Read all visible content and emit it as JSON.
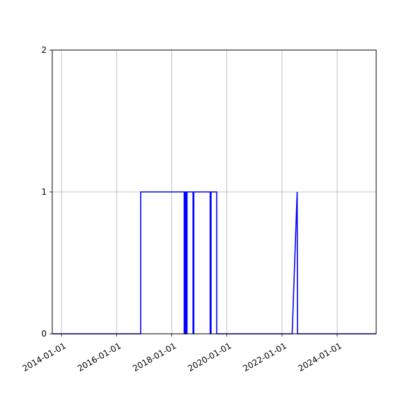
{
  "chart_data": {
    "type": "line",
    "title": "",
    "xlabel": "",
    "ylabel": "",
    "x_type": "date",
    "xlim": [
      "2013-09-01",
      "2025-06-01"
    ],
    "ylim": [
      0,
      2
    ],
    "x_ticks": [
      "2014-01-01",
      "2016-01-01",
      "2018-01-01",
      "2020-01-01",
      "2022-01-01",
      "2024-01-01"
    ],
    "y_ticks": [
      0,
      1,
      2
    ],
    "y_tick_labels": [
      "0",
      "1",
      "2"
    ],
    "grid": true,
    "legend": "none",
    "series": [
      {
        "color": "#0000ff",
        "points": [
          [
            "2013-09-01",
            0
          ],
          [
            "2016-11-15",
            0
          ],
          [
            "2016-11-15",
            1
          ],
          [
            "2018-06-15",
            1
          ],
          [
            "2018-06-15",
            0
          ],
          [
            "2018-06-25",
            0
          ],
          [
            "2018-06-25",
            1
          ],
          [
            "2018-07-01",
            1
          ],
          [
            "2018-07-01",
            0
          ],
          [
            "2018-07-08",
            0
          ],
          [
            "2018-07-08",
            1
          ],
          [
            "2018-07-15",
            1
          ],
          [
            "2018-07-15",
            0
          ],
          [
            "2018-07-22",
            0
          ],
          [
            "2018-07-22",
            1
          ],
          [
            "2018-10-10",
            1
          ],
          [
            "2018-10-10",
            0
          ],
          [
            "2018-10-20",
            0
          ],
          [
            "2018-10-20",
            1
          ],
          [
            "2019-05-25",
            1
          ],
          [
            "2019-05-25",
            0
          ],
          [
            "2019-06-05",
            0
          ],
          [
            "2019-06-05",
            1
          ],
          [
            "2019-08-20",
            1
          ],
          [
            "2019-08-20",
            0
          ],
          [
            "2022-05-15",
            0
          ],
          [
            "2022-07-20",
            1
          ],
          [
            "2022-07-25",
            0
          ],
          [
            "2025-06-01",
            0
          ]
        ]
      }
    ]
  }
}
